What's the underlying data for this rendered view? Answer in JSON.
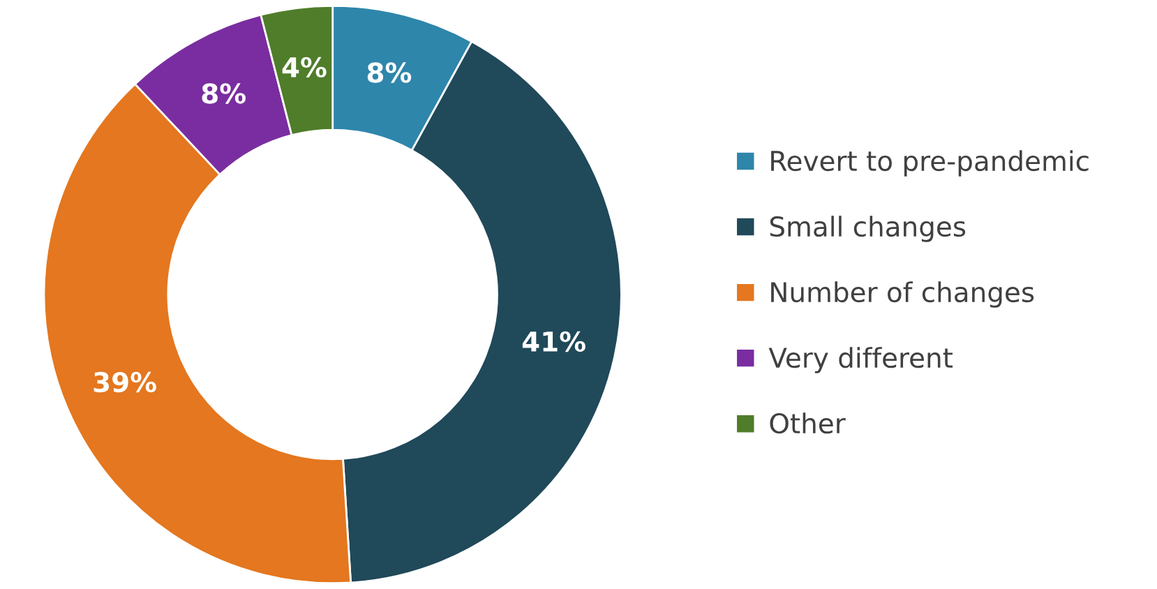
{
  "chart_data": {
    "type": "donut",
    "categories": [
      "Revert to pre-pandemic",
      "Small changes",
      "Number of changes",
      "Very different",
      "Other"
    ],
    "values": [
      8,
      41,
      39,
      8,
      4
    ],
    "colors": [
      "#2e86ab",
      "#20495a",
      "#e4771f",
      "#7a2da0",
      "#4f7d2a"
    ],
    "value_labels": [
      "8%",
      "41%",
      "39%",
      "8%",
      "4%"
    ],
    "legend": "right"
  }
}
